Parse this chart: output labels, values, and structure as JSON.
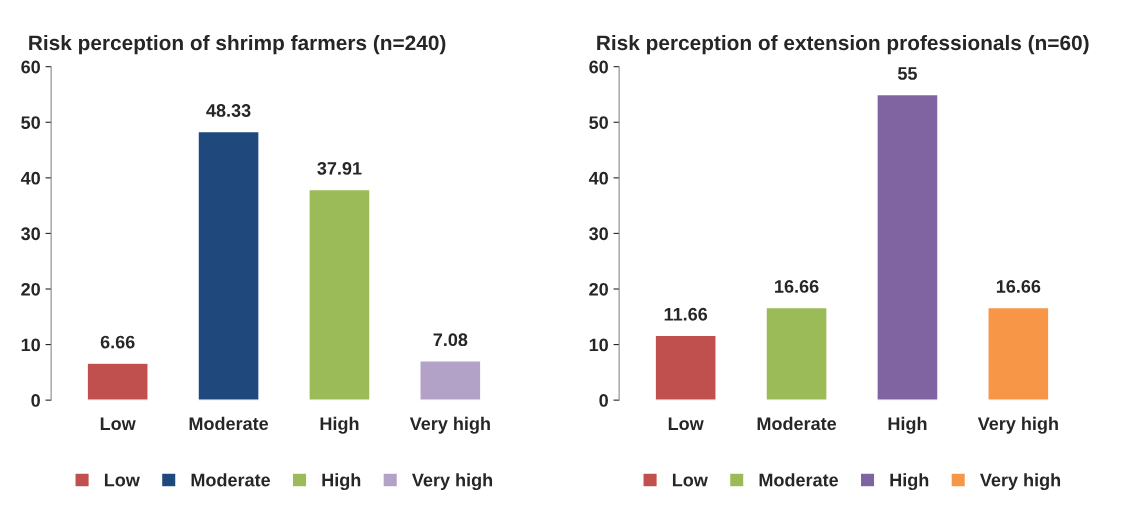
{
  "chart_data": [
    {
      "type": "bar",
      "title": "Risk perception of shrimp farmers (n=240)",
      "categories": [
        "Low",
        "Moderate",
        "High",
        "Very high"
      ],
      "series": [
        {
          "name": "Low",
          "color": "#c0504d",
          "values": [
            6.66,
            null,
            null,
            null
          ]
        },
        {
          "name": "Moderate",
          "color": "#1f497d",
          "values": [
            null,
            48.33,
            null,
            null
          ]
        },
        {
          "name": "High",
          "color": "#9bbb59",
          "values": [
            null,
            null,
            37.91,
            null
          ]
        },
        {
          "name": "Very high",
          "color": "#b3a2c7",
          "values": [
            null,
            null,
            null,
            7.08
          ]
        }
      ],
      "ylim": [
        0,
        60
      ],
      "yticks": [
        0,
        10,
        20,
        30,
        40,
        50,
        60
      ],
      "data_labels": true,
      "legend": "bottom",
      "grid": false
    },
    {
      "type": "bar",
      "title": "Risk perception of extension professionals (n=60)",
      "categories": [
        "Low",
        "Moderate",
        "High",
        "Very high"
      ],
      "series": [
        {
          "name": "Low",
          "color": "#c0504d",
          "values": [
            11.66,
            null,
            null,
            null
          ]
        },
        {
          "name": "Moderate",
          "color": "#9bbb59",
          "values": [
            null,
            16.66,
            null,
            null
          ]
        },
        {
          "name": "High",
          "color": "#8064a2",
          "values": [
            null,
            null,
            55,
            null
          ]
        },
        {
          "name": "Very high",
          "color": "#f79646",
          "values": [
            null,
            null,
            null,
            16.66
          ]
        }
      ],
      "ylim": [
        0,
        60
      ],
      "yticks": [
        0,
        10,
        20,
        30,
        40,
        50,
        60
      ],
      "data_labels": true,
      "legend": "bottom",
      "grid": false
    }
  ]
}
